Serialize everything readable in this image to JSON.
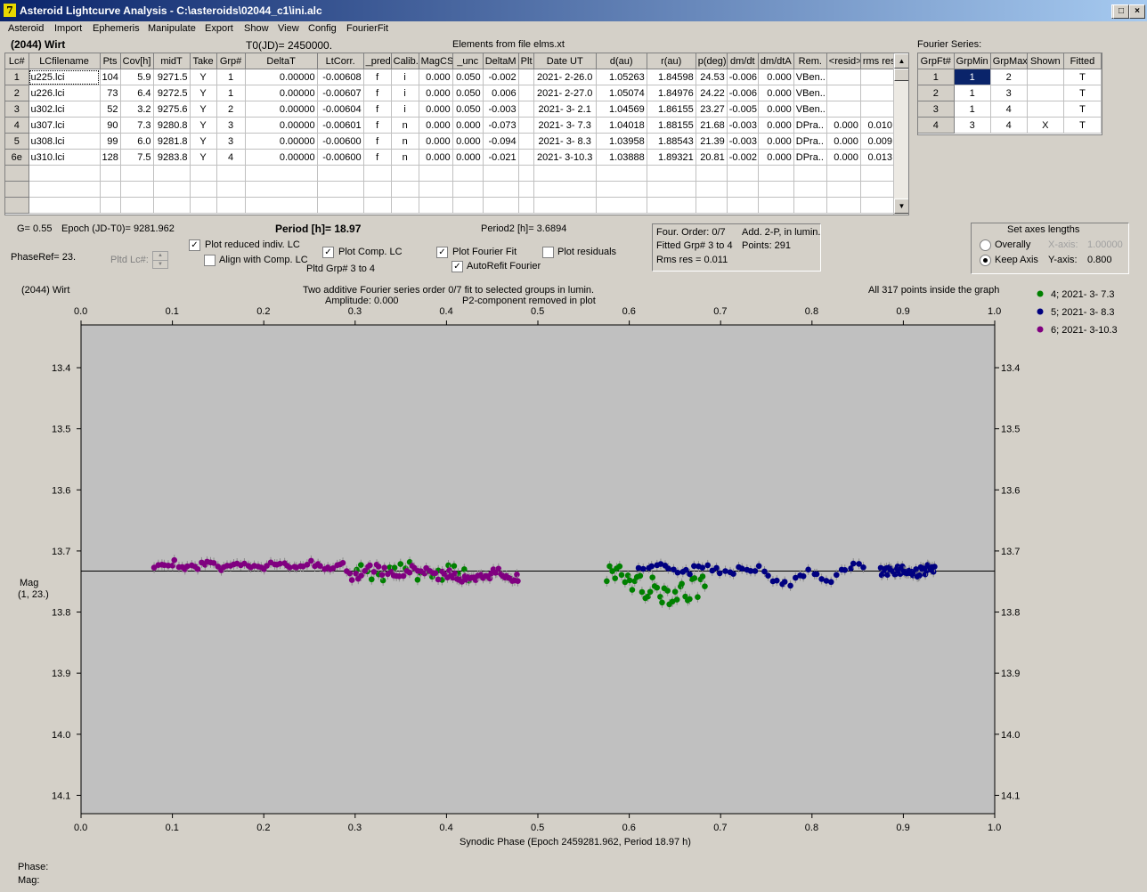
{
  "window": {
    "title": "Asteroid Lightcurve Analysis - C:\\asteroids\\02044_c1\\ini.alc",
    "icon": "app-icon",
    "min": "_",
    "max": "□",
    "close": "×"
  },
  "menu": [
    "Asteroid",
    "Import",
    "Ephemeris",
    "Manipulate",
    "Export",
    "Show",
    "View",
    "Config",
    "FourierFit"
  ],
  "info": {
    "asteroid": "(2044) Wirt",
    "t0": "T0(JD)= 2450000.",
    "elements": "Elements from file elms.xt",
    "fourier_title": "Fourier Series:"
  },
  "lc_table": {
    "headers": [
      "Lc#",
      "LCfilename",
      "Pts",
      "Cov[h]",
      "midT",
      "Take",
      "Grp#",
      "DeltaT",
      "LtCorr.",
      "_pred.",
      "Calib.",
      "MagCS",
      "_unc",
      "DeltaM",
      "Plt",
      "Date UT",
      "d(au)",
      "r(au)",
      "p(deg)",
      "dm/dt",
      "dm/dtA",
      "Rem.",
      "<resid>",
      "rms res"
    ],
    "rows": [
      [
        "1",
        "u225.lci",
        "104",
        "5.9",
        "9271.5",
        "Y",
        "1",
        "0.00000",
        "-0.00608",
        "f",
        "i",
        "0.000",
        "0.050",
        "-0.002",
        "",
        "2021- 2-26.0",
        "1.05263",
        "1.84598",
        "24.53",
        "-0.006",
        "0.000",
        "VBen..",
        "",
        ""
      ],
      [
        "2",
        "u226.lci",
        "73",
        "6.4",
        "9272.5",
        "Y",
        "1",
        "0.00000",
        "-0.00607",
        "f",
        "i",
        "0.000",
        "0.050",
        "0.006",
        "",
        "2021- 2-27.0",
        "1.05074",
        "1.84976",
        "24.22",
        "-0.006",
        "0.000",
        "VBen..",
        "",
        ""
      ],
      [
        "3",
        "u302.lci",
        "52",
        "3.2",
        "9275.6",
        "Y",
        "2",
        "0.00000",
        "-0.00604",
        "f",
        "i",
        "0.000",
        "0.050",
        "-0.003",
        "",
        "2021- 3- 2.1",
        "1.04569",
        "1.86155",
        "23.27",
        "-0.005",
        "0.000",
        "VBen..",
        "",
        ""
      ],
      [
        "4",
        "u307.lci",
        "90",
        "7.3",
        "9280.8",
        "Y",
        "3",
        "0.00000",
        "-0.00601",
        "f",
        "n",
        "0.000",
        "0.000",
        "-0.073",
        "",
        "2021- 3- 7.3",
        "1.04018",
        "1.88155",
        "21.68",
        "-0.003",
        "0.000",
        "DPra..",
        "0.000",
        "0.010"
      ],
      [
        "5",
        "u308.lci",
        "99",
        "6.0",
        "9281.8",
        "Y",
        "3",
        "0.00000",
        "-0.00600",
        "f",
        "n",
        "0.000",
        "0.000",
        "-0.094",
        "",
        "2021- 3- 8.3",
        "1.03958",
        "1.88543",
        "21.39",
        "-0.003",
        "0.000",
        "DPra..",
        "0.000",
        "0.009"
      ],
      [
        "6e",
        "u310.lci",
        "128",
        "7.5",
        "9283.8",
        "Y",
        "4",
        "0.00000",
        "-0.00600",
        "f",
        "n",
        "0.000",
        "0.000",
        "-0.021",
        "",
        "2021- 3-10.3",
        "1.03888",
        "1.89321",
        "20.81",
        "-0.002",
        "0.000",
        "DPra..",
        "0.000",
        "0.013"
      ]
    ]
  },
  "fourier_table": {
    "headers": [
      "GrpFt#",
      "GrpMin",
      "GrpMax",
      "Shown",
      "Fitted"
    ],
    "rows": [
      [
        "1",
        "1",
        "2",
        "",
        "T"
      ],
      [
        "2",
        "1",
        "3",
        "",
        "T"
      ],
      [
        "3",
        "1",
        "4",
        "",
        "T"
      ],
      [
        "4",
        "3",
        "4",
        "X",
        "T"
      ]
    ]
  },
  "params": {
    "g": "G= 0.55",
    "epoch": "Epoch (JD-T0)= 9281.962",
    "period": "Period [h]= 18.97",
    "period2": "Period2 [h]= 3.6894",
    "phaseref": "PhaseRef= 23.",
    "pltd_lc": "Pltd Lc#:",
    "pltd_grp": "Pltd Grp#  3  to  4"
  },
  "checks": {
    "reduced": {
      "label": "Plot reduced indiv. LC",
      "checked": true
    },
    "align": {
      "label": "Align with Comp. LC",
      "checked": false
    },
    "comp": {
      "label": "Plot Comp. LC",
      "checked": true
    },
    "fourier": {
      "label": "Plot Fourier Fit",
      "checked": true
    },
    "residuals": {
      "label": "Plot residuals",
      "checked": false
    },
    "autorefit": {
      "label": "AutoRefit Fourier",
      "checked": true
    },
    "checkmark": "✓"
  },
  "fit_info": {
    "order": "Four. Order:  0/7",
    "add": "Add. 2-P, in lumin.",
    "fitted": "Fitted Grp# 3 to 4",
    "points": "Points: 291",
    "rms": "Rms res      = 0.011"
  },
  "axes_box": {
    "title": "Set axes lengths",
    "overall": "Overally",
    "keep": "Keep Axis",
    "xaxis_label": "X-axis:",
    "xaxis_value": "1.00000",
    "yaxis_label": "Y-axis:",
    "yaxis_value": "0.800"
  },
  "status": {
    "phase": "Phase:",
    "mag": "Mag:"
  },
  "chart_data": {
    "type": "scatter",
    "corner_label": "(2044) Wirt",
    "title": "Two additive Fourier series order 0/7 fit to selected groups in lumin.",
    "subtitle_left": "Amplitude: 0.000",
    "subtitle_right": "P2-component removed in plot",
    "note": "All 317 points inside the graph",
    "xlabel": "Synodic Phase (Epoch 2459281.962, Period 18.97 h)",
    "ylabel": "Mag",
    "ylabel2": "(1, 23.)",
    "xlim": [
      0.0,
      1.0
    ],
    "ylim": [
      13.33,
      14.13
    ],
    "y_inverted": true,
    "xticks": [
      "0.0",
      "0.1",
      "0.2",
      "0.3",
      "0.4",
      "0.5",
      "0.6",
      "0.7",
      "0.8",
      "0.9",
      "1.0"
    ],
    "yticks": [
      "13.4",
      "13.5",
      "13.6",
      "13.7",
      "13.8",
      "13.9",
      "14.0",
      "14.1"
    ],
    "fit_line_mag": 13.733,
    "legend_position": "top-right",
    "series": [
      {
        "name": "4; 2021- 3- 7.3",
        "color": "#008000",
        "segments": [
          {
            "x0": 0.3,
            "x1": 0.43,
            "n": 22,
            "mean": 13.735,
            "amp": 0.006,
            "freq": 19,
            "noise": 0.013
          },
          {
            "x0": 0.575,
            "x1": 0.685,
            "n": 40,
            "mean": 13.748,
            "amp": 0.02,
            "freq": 5,
            "noise": 0.02
          }
        ]
      },
      {
        "name": "5; 2021- 3- 8.3",
        "color": "#000080",
        "segments": [
          {
            "x0": 0.61,
            "x1": 0.75,
            "n": 30,
            "mean": 13.729,
            "amp": 0.004,
            "freq": 23,
            "noise": 0.007
          },
          {
            "x0": 0.75,
            "x1": 0.8,
            "n": 10,
            "mean": 13.74,
            "amp": 0.012,
            "freq": 12,
            "noise": 0.006
          },
          {
            "x0": 0.8,
            "x1": 0.86,
            "n": 12,
            "mean": 13.735,
            "amp": 0.01,
            "freq": 15,
            "noise": 0.008
          },
          {
            "x0": 0.875,
            "x1": 0.935,
            "n": 48,
            "mean": 13.733,
            "amp": 0.003,
            "freq": 31,
            "noise": 0.008
          }
        ]
      },
      {
        "name": "6; 2021- 3-10.3",
        "color": "#800080",
        "segments": [
          {
            "x0": 0.08,
            "x1": 0.29,
            "n": 58,
            "mean": 13.724,
            "amp": 0.004,
            "freq": 27,
            "noise": 0.005
          },
          {
            "x0": 0.29,
            "x1": 0.4,
            "n": 34,
            "mean": 13.735,
            "amp": 0.006,
            "freq": 21,
            "noise": 0.007
          },
          {
            "x0": 0.4,
            "x1": 0.48,
            "n": 38,
            "mean": 13.742,
            "amp": 0.007,
            "freq": 17,
            "noise": 0.008
          }
        ]
      }
    ]
  }
}
